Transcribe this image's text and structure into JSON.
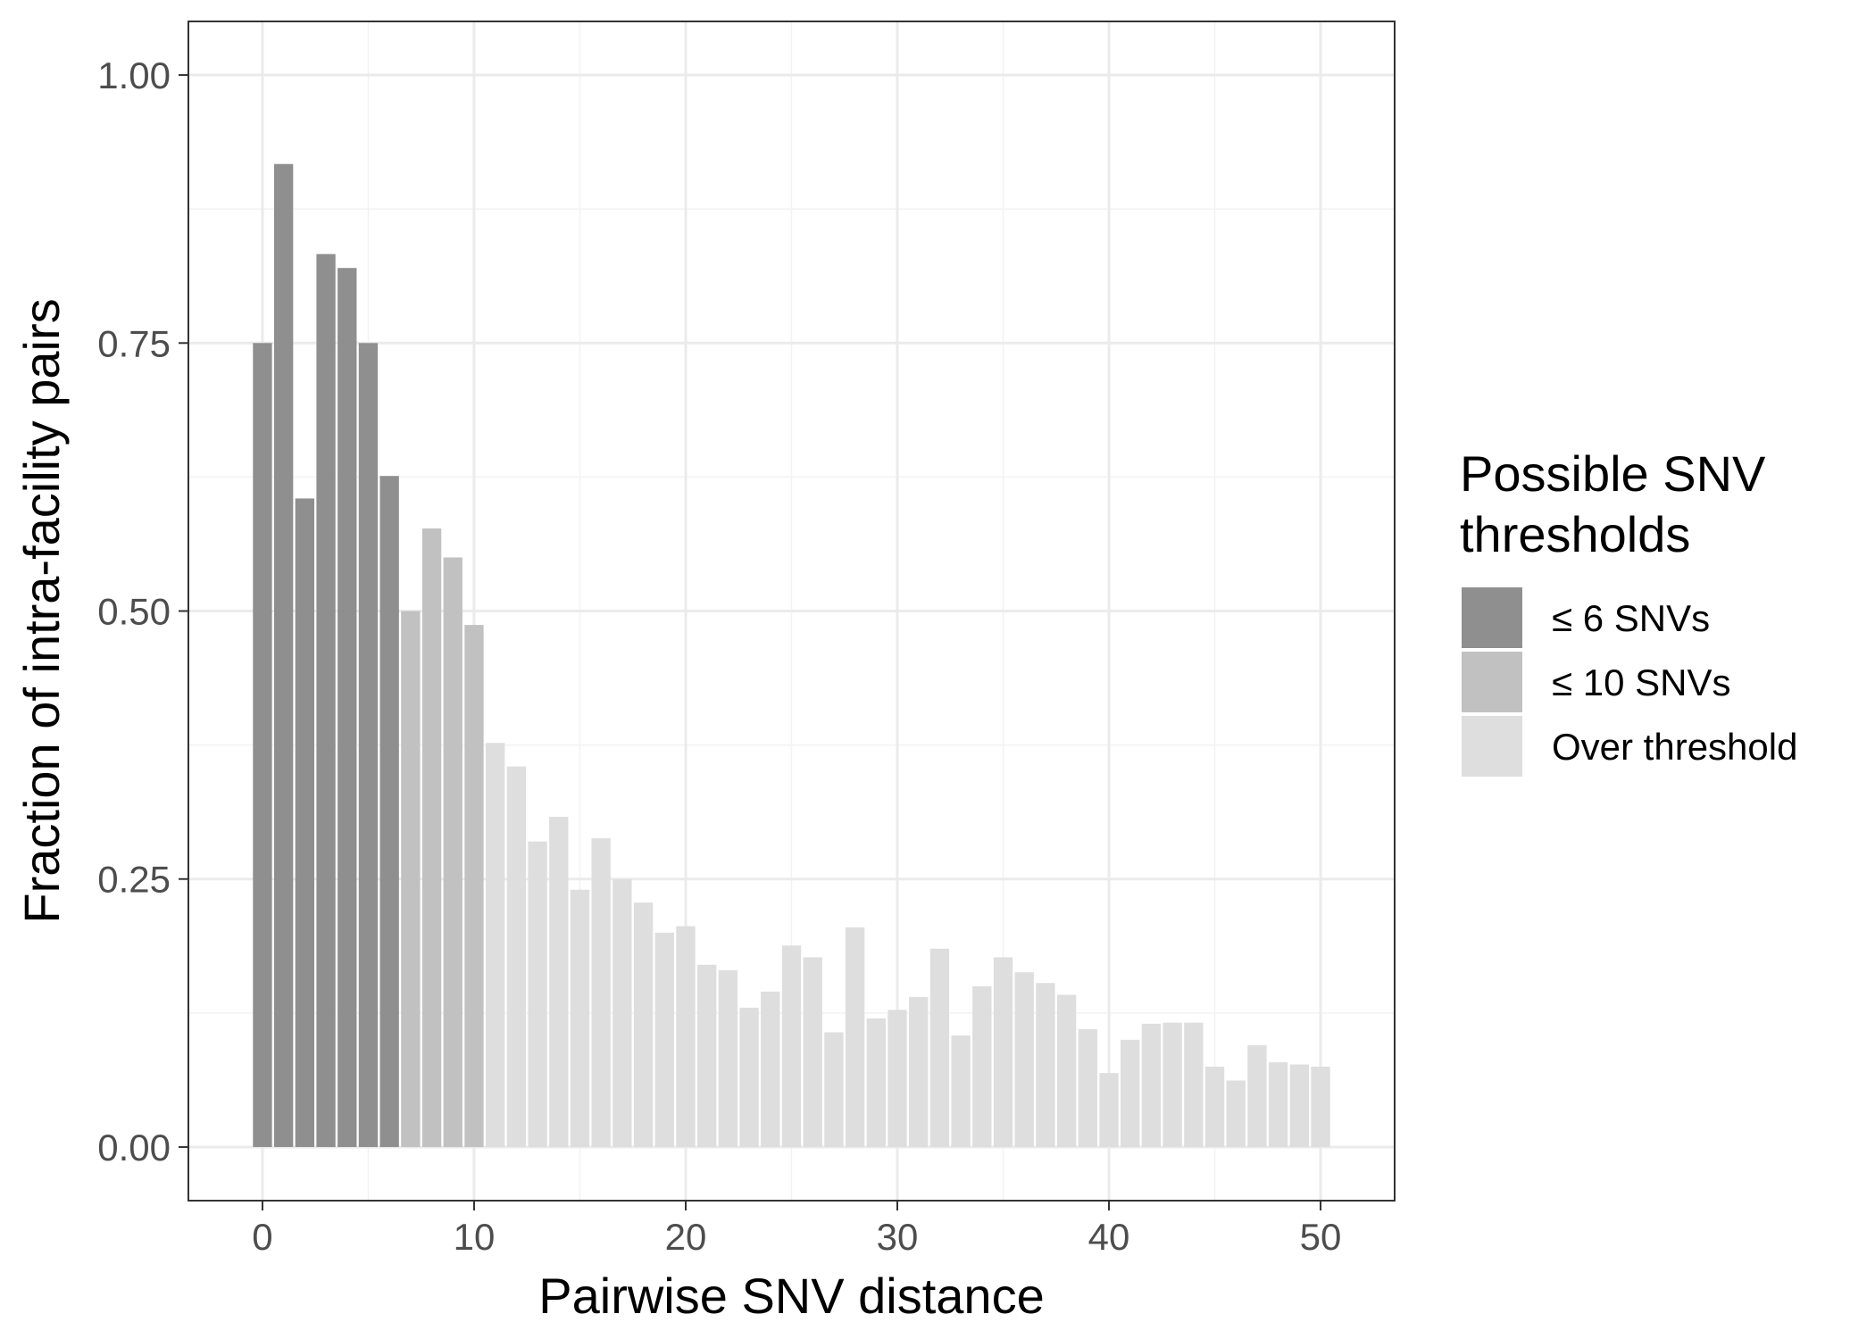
{
  "chart_data": {
    "type": "bar",
    "xlabel": "Pairwise SNV distance",
    "ylabel": "Fraction of intra-facility pairs",
    "xlim": [
      -3.5,
      53.5
    ],
    "ylim": [
      -0.05,
      1.05
    ],
    "xticks": [
      0,
      10,
      20,
      30,
      40,
      50
    ],
    "xtick_labels": [
      "0",
      "10",
      "20",
      "30",
      "40",
      "50"
    ],
    "yticks": [
      0,
      0.25,
      0.5,
      0.75,
      1.0
    ],
    "ytick_labels": [
      "0.00",
      "0.25",
      "0.50",
      "0.75",
      "1.00"
    ],
    "grid": true,
    "legend": {
      "position": "right",
      "title_lines": [
        "Possible SNV",
        "thresholds"
      ],
      "entries": [
        {
          "label": "≤ 6 SNVs",
          "color": "#8f8f8f"
        },
        {
          "label": "≤ 10 SNVs",
          "color": "#c1c1c1"
        },
        {
          "label": "Over threshold",
          "color": "#dedede"
        }
      ]
    },
    "x": [
      0,
      1,
      2,
      3,
      4,
      5,
      6,
      7,
      8,
      9,
      10,
      11,
      12,
      13,
      14,
      15,
      16,
      17,
      18,
      19,
      20,
      21,
      22,
      23,
      24,
      25,
      26,
      27,
      28,
      29,
      30,
      31,
      32,
      33,
      34,
      35,
      36,
      37,
      38,
      39,
      40,
      41,
      42,
      43,
      44,
      45,
      46,
      47,
      48,
      49,
      50
    ],
    "values": [
      0.75,
      0.917,
      0.605,
      0.833,
      0.82,
      0.75,
      0.626,
      0.5,
      0.577,
      0.55,
      0.487,
      0.377,
      0.355,
      0.285,
      0.308,
      0.24,
      0.288,
      0.25,
      0.228,
      0.2,
      0.206,
      0.17,
      0.165,
      0.13,
      0.145,
      0.188,
      0.177,
      0.107,
      0.205,
      0.12,
      0.128,
      0.14,
      0.185,
      0.104,
      0.15,
      0.177,
      0.163,
      0.153,
      0.142,
      0.11,
      0.069,
      0.1,
      0.115,
      0.116,
      0.116,
      0.075,
      0.062,
      0.095,
      0.079,
      0.077,
      0.075
    ],
    "groups": [
      0,
      0,
      0,
      0,
      0,
      0,
      0,
      1,
      1,
      1,
      1,
      2,
      2,
      2,
      2,
      2,
      2,
      2,
      2,
      2,
      2,
      2,
      2,
      2,
      2,
      2,
      2,
      2,
      2,
      2,
      2,
      2,
      2,
      2,
      2,
      2,
      2,
      2,
      2,
      2,
      2,
      2,
      2,
      2,
      2,
      2,
      2,
      2,
      2,
      2,
      2
    ]
  }
}
